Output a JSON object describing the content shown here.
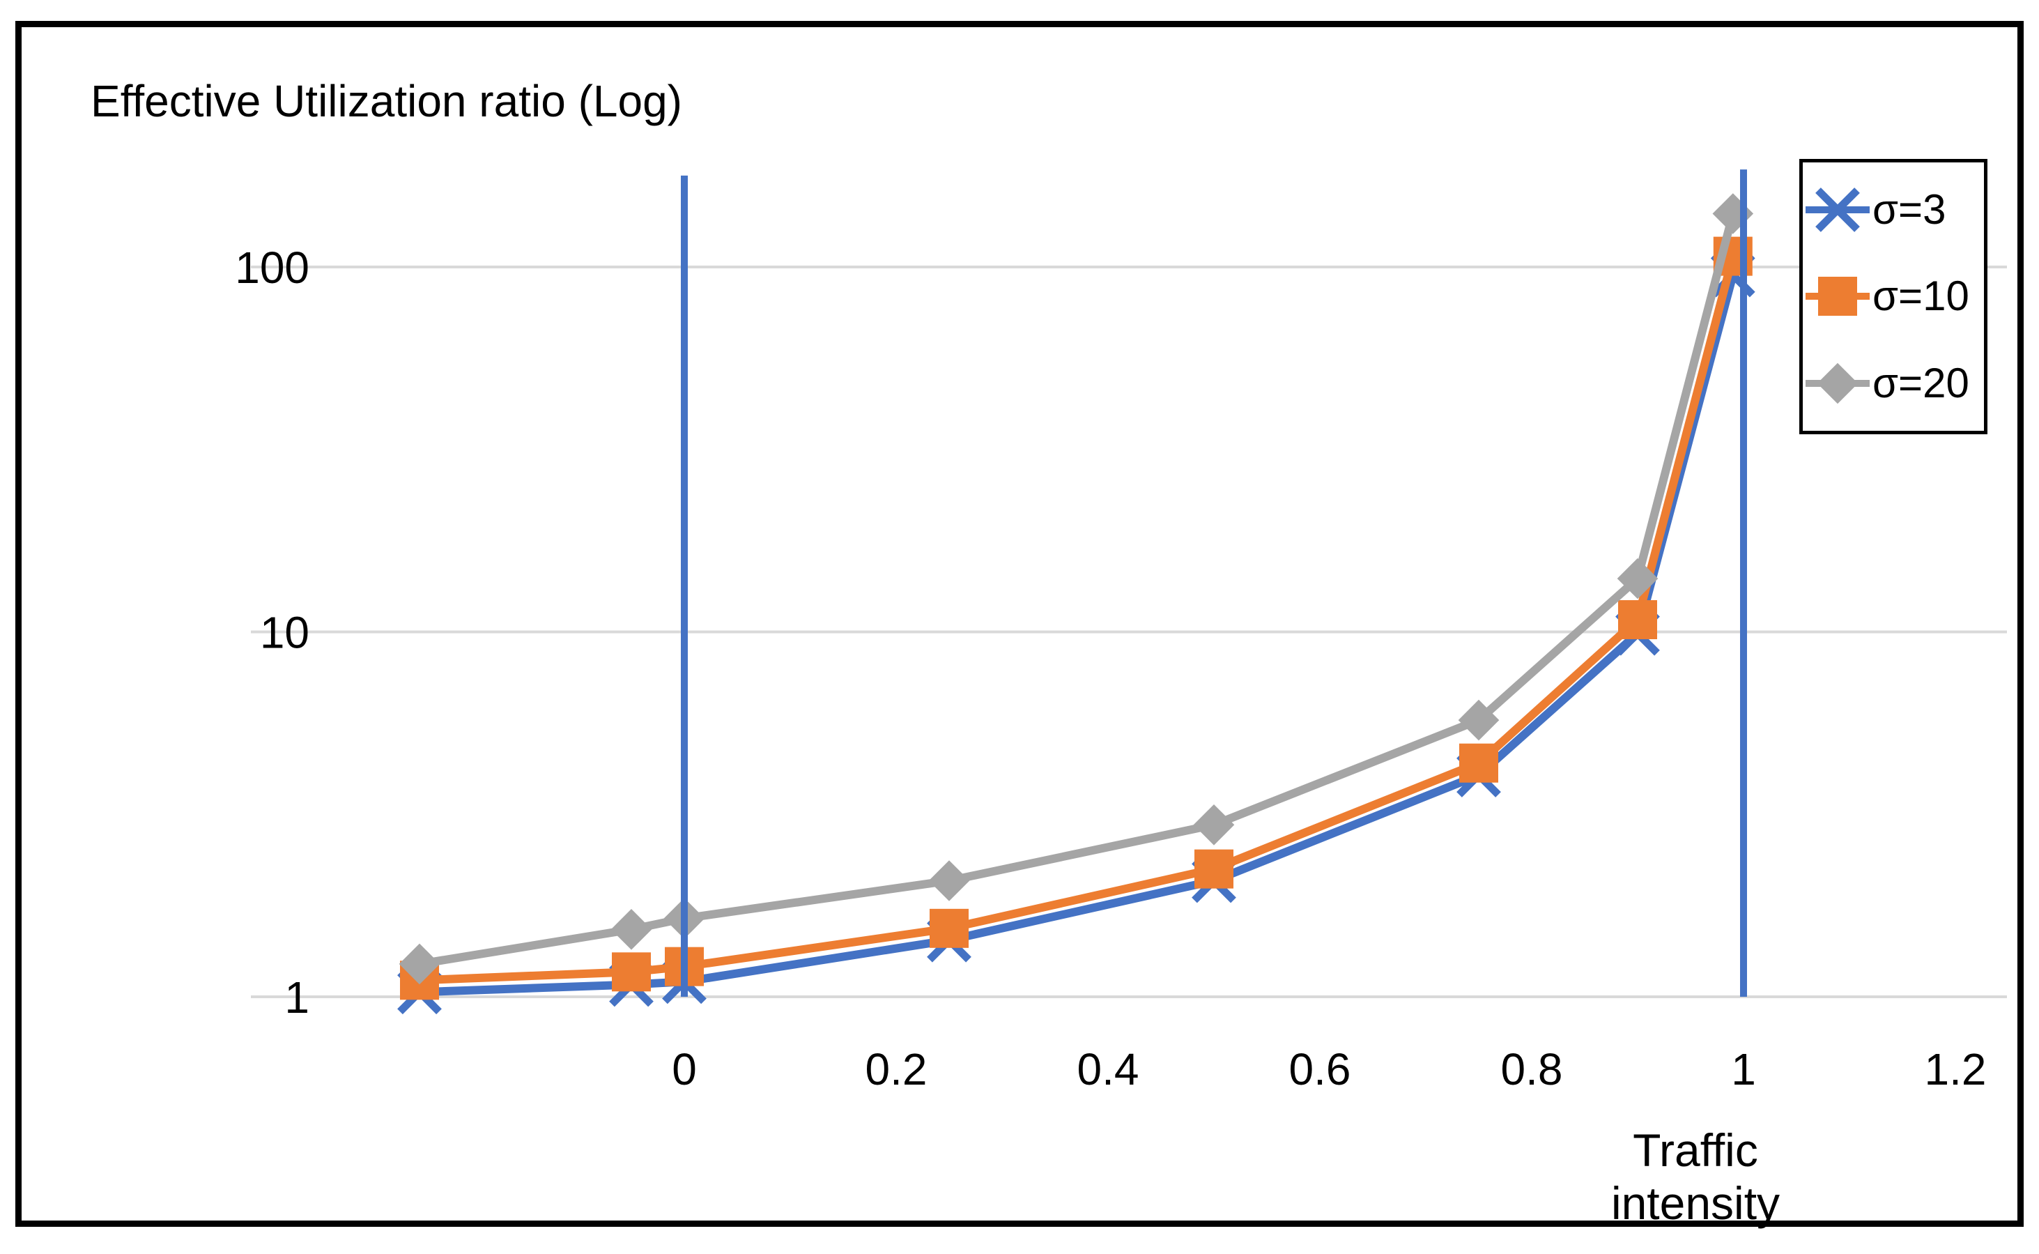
{
  "chart_data": {
    "type": "line",
    "title": "Effective Utilization ratio (Log)",
    "xlabel": "Traffic intensity",
    "ylabel": "",
    "yscale": "log",
    "ylim": [
      1,
      200
    ],
    "xlim": [
      -0.35,
      1.25
    ],
    "grid": "horizontal-only",
    "gridline_color": "#D9D9D9",
    "legend_position": "top-right",
    "xticks": {
      "values": [
        0,
        0.2,
        0.4,
        0.6,
        0.8,
        1,
        1.2
      ],
      "labels": [
        "0",
        "0.2",
        "0.4",
        "0.6",
        "0.8",
        "1",
        "1.2"
      ]
    },
    "yticks": {
      "values": [
        1,
        10,
        100
      ],
      "labels": [
        "1",
        "10",
        "100"
      ]
    },
    "x": [
      -0.25,
      -0.05,
      0,
      0.25,
      0.5,
      0.75,
      0.9,
      0.99
    ],
    "series": [
      {
        "name": "σ=3",
        "color": "#4472C4",
        "marker": "x",
        "values": [
          1.03,
          1.08,
          1.1,
          1.43,
          2.08,
          4.05,
          9.9,
          95
        ]
      },
      {
        "name": "σ=10",
        "color": "#ED7D31",
        "marker": "square",
        "values": [
          1.11,
          1.17,
          1.21,
          1.54,
          2.24,
          4.37,
          10.8,
          107
        ]
      },
      {
        "name": "σ=20",
        "color": "#A5A5A5",
        "marker": "diamond",
        "values": [
          1.23,
          1.53,
          1.64,
          2.08,
          2.96,
          5.73,
          14.0,
          140
        ]
      }
    ],
    "vertical_guides": [
      {
        "x": 0,
        "top_value": 178,
        "color": "#4472C4"
      },
      {
        "x": 1,
        "top_value": 185,
        "color": "#4472C4"
      }
    ]
  }
}
